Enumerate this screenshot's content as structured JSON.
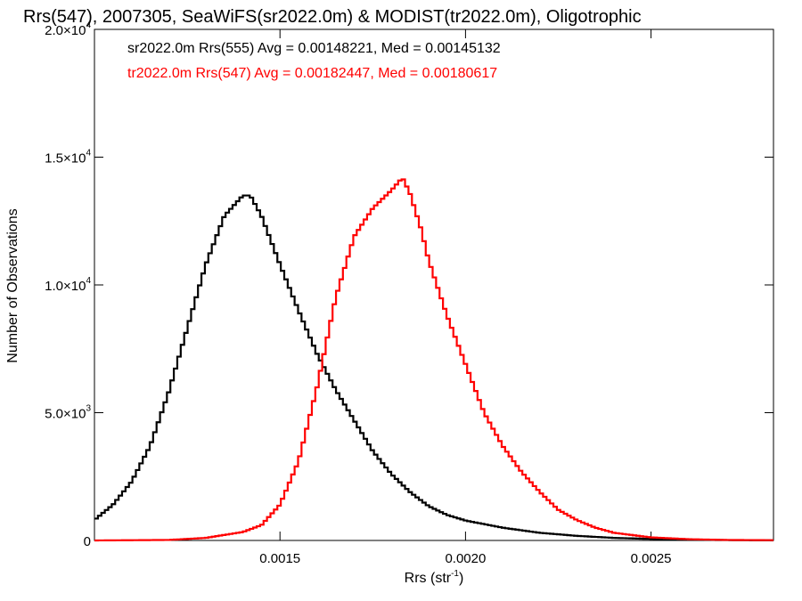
{
  "chart_data": {
    "type": "line",
    "title": "Rrs(547), 2007305, SeaWiFS(sr2022.0m) & MODIST(tr2022.0m), Oligotrophic",
    "xlabel": "Rrs (str",
    "xlabel_sup": "-1",
    "xlabel_end": ")",
    "ylabel": "Number of Observations",
    "xlim": [
      0.001,
      0.00283
    ],
    "ylim": [
      0,
      20000
    ],
    "grid": false,
    "x_ticks": [
      {
        "value": 0.0015,
        "label": "0.0015"
      },
      {
        "value": 0.002,
        "label": "0.0020"
      },
      {
        "value": 0.0025,
        "label": "0.0025"
      }
    ],
    "y_ticks": [
      {
        "value": 0,
        "label": "0",
        "sup": ""
      },
      {
        "value": 5000,
        "label": "5.0×10",
        "sup": "3"
      },
      {
        "value": 10000,
        "label": "1.0×10",
        "sup": "4"
      },
      {
        "value": 15000,
        "label": "1.5×10",
        "sup": "4"
      },
      {
        "value": 20000,
        "label": "2.0×10",
        "sup": "4"
      }
    ],
    "annotations": [
      {
        "text": "sr2022.0m Rrs(555) Avg = 0.00148221, Med = 0.00145132",
        "color": "#000000"
      },
      {
        "text": "tr2022.0m Rrs(547) Avg = 0.00182447, Med = 0.00180617",
        "color": "#ff0000"
      }
    ],
    "series": [
      {
        "color": "#000000",
        "points": [
          [
            0.001,
            800
          ],
          [
            0.00105,
            1400
          ],
          [
            0.0011,
            2300
          ],
          [
            0.00115,
            3700
          ],
          [
            0.0012,
            5800
          ],
          [
            0.00125,
            8300
          ],
          [
            0.0013,
            10800
          ],
          [
            0.00135,
            12700
          ],
          [
            0.0014,
            13500
          ],
          [
            0.00142,
            13500
          ],
          [
            0.00145,
            12700
          ],
          [
            0.0015,
            10800
          ],
          [
            0.00155,
            9000
          ],
          [
            0.0016,
            7300
          ],
          [
            0.00165,
            5900
          ],
          [
            0.0017,
            4700
          ],
          [
            0.00175,
            3500
          ],
          [
            0.0018,
            2600
          ],
          [
            0.00185,
            1900
          ],
          [
            0.0019,
            1350
          ],
          [
            0.00195,
            1000
          ],
          [
            0.002,
            780
          ],
          [
            0.0021,
            500
          ],
          [
            0.0022,
            300
          ],
          [
            0.0023,
            180
          ],
          [
            0.0024,
            100
          ],
          [
            0.0025,
            60
          ],
          [
            0.0026,
            30
          ],
          [
            0.0027,
            15
          ],
          [
            0.00283,
            5
          ]
        ]
      },
      {
        "color": "#ff0000",
        "points": [
          [
            0.001,
            0
          ],
          [
            0.0012,
            20
          ],
          [
            0.0013,
            100
          ],
          [
            0.0014,
            330
          ],
          [
            0.00145,
            600
          ],
          [
            0.0015,
            1400
          ],
          [
            0.00155,
            3100
          ],
          [
            0.0016,
            6000
          ],
          [
            0.00165,
            9500
          ],
          [
            0.0017,
            11900
          ],
          [
            0.00175,
            13000
          ],
          [
            0.0018,
            13700
          ],
          [
            0.00183,
            14200
          ],
          [
            0.00185,
            13600
          ],
          [
            0.00188,
            12200
          ],
          [
            0.0019,
            11000
          ],
          [
            0.00195,
            8800
          ],
          [
            0.002,
            6900
          ],
          [
            0.00205,
            5000
          ],
          [
            0.0021,
            3700
          ],
          [
            0.00215,
            2700
          ],
          [
            0.0022,
            1900
          ],
          [
            0.00225,
            1200
          ],
          [
            0.0023,
            800
          ],
          [
            0.00235,
            500
          ],
          [
            0.0024,
            300
          ],
          [
            0.0025,
            120
          ],
          [
            0.0026,
            50
          ],
          [
            0.0027,
            20
          ],
          [
            0.00283,
            10
          ]
        ]
      }
    ]
  }
}
